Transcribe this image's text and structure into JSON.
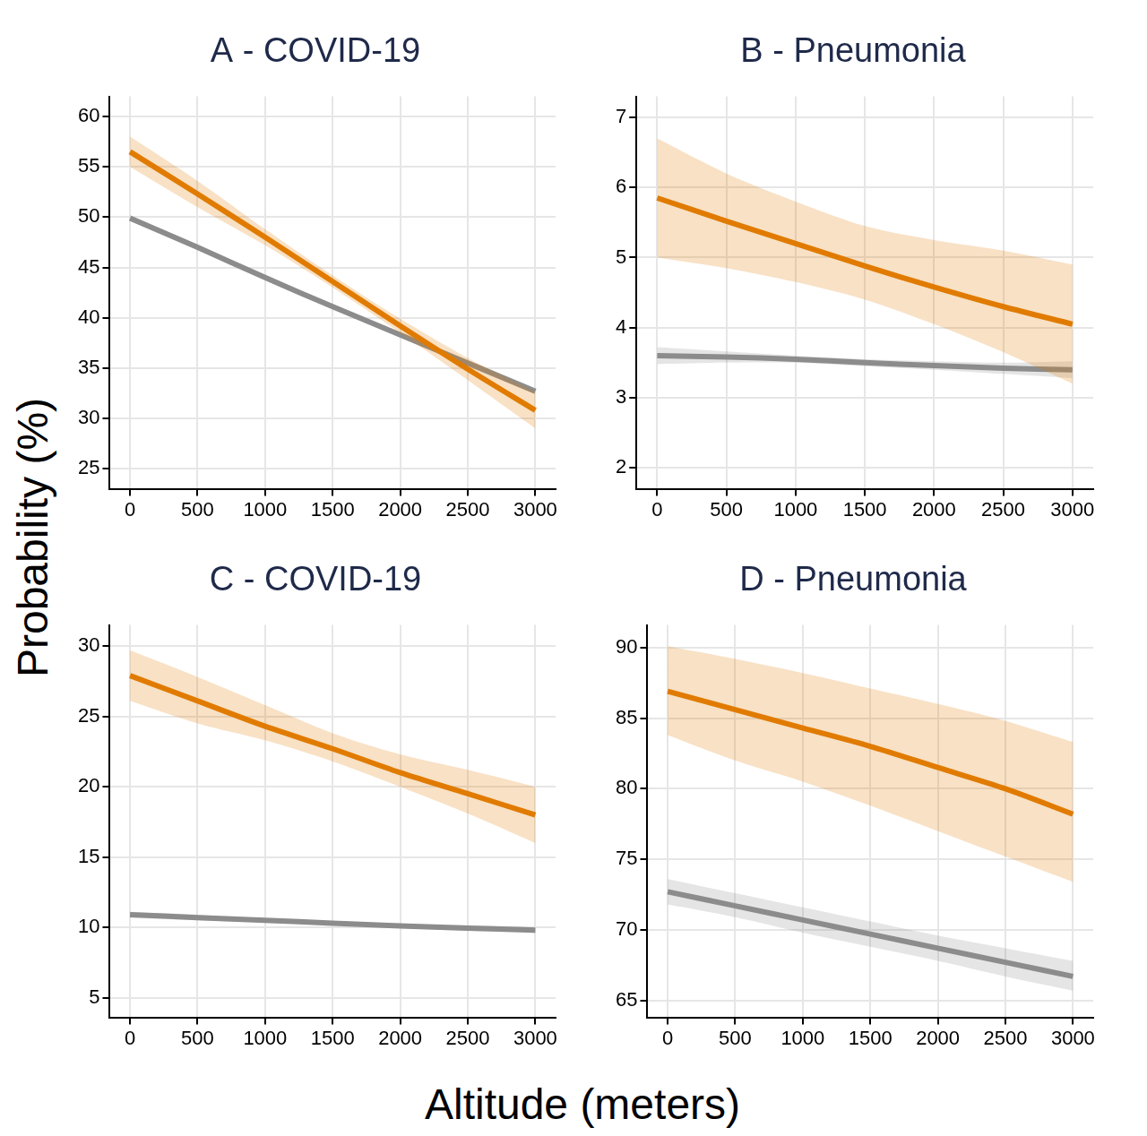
{
  "y_label": "Probability (%)",
  "x_label": "Altitude (meters)",
  "chart_data": [
    {
      "type": "line",
      "title": "A - COVID-19",
      "grid": true,
      "x": [
        0,
        500,
        1000,
        1500,
        2000,
        2500,
        3000
      ],
      "xlim": [
        -150,
        3150
      ],
      "xticks": [
        0,
        500,
        1000,
        1500,
        2000,
        2500,
        3000
      ],
      "ylim": [
        23,
        62
      ],
      "yticks": [
        25,
        30,
        35,
        40,
        45,
        50,
        55,
        60
      ],
      "series": [
        {
          "color": "#e07b00",
          "values": [
            56.5,
            52.3,
            48.0,
            43.6,
            39.2,
            34.9,
            30.8
          ],
          "lower": [
            55.0,
            51.0,
            47.2,
            43.0,
            38.5,
            33.8,
            29.0
          ],
          "upper": [
            58.0,
            53.6,
            48.8,
            44.2,
            39.9,
            36.0,
            32.6
          ]
        },
        {
          "color": "#8c8c8c",
          "values": [
            49.9,
            47.0,
            44.0,
            41.1,
            38.3,
            35.5,
            32.7
          ],
          "lower": [
            49.6,
            46.8,
            43.8,
            40.9,
            38.1,
            35.2,
            32.4
          ],
          "upper": [
            50.2,
            47.2,
            44.2,
            41.3,
            38.5,
            35.8,
            33.0
          ]
        }
      ]
    },
    {
      "type": "line",
      "title": "B - Pneumonia",
      "grid": true,
      "x": [
        0,
        500,
        1000,
        1500,
        2000,
        2500,
        3000
      ],
      "xlim": [
        -150,
        3150
      ],
      "xticks": [
        0,
        500,
        1000,
        1500,
        2000,
        2500,
        3000
      ],
      "ylim": [
        1.7,
        7.3
      ],
      "yticks": [
        2,
        3,
        4,
        5,
        6,
        7
      ],
      "series": [
        {
          "color": "#e07b00",
          "values": [
            5.85,
            5.52,
            5.2,
            4.88,
            4.58,
            4.3,
            4.05
          ],
          "lower": [
            5.0,
            4.85,
            4.65,
            4.4,
            4.05,
            3.65,
            3.2
          ],
          "upper": [
            6.7,
            6.2,
            5.8,
            5.45,
            5.25,
            5.1,
            4.9
          ]
        },
        {
          "color": "#8c8c8c",
          "values": [
            3.6,
            3.58,
            3.55,
            3.5,
            3.46,
            3.42,
            3.4
          ],
          "lower": [
            3.48,
            3.5,
            3.5,
            3.45,
            3.4,
            3.34,
            3.28
          ],
          "upper": [
            3.72,
            3.66,
            3.6,
            3.55,
            3.52,
            3.5,
            3.52
          ]
        }
      ]
    },
    {
      "type": "line",
      "title": "C - COVID-19",
      "grid": true,
      "x": [
        0,
        500,
        1000,
        1500,
        2000,
        2500,
        3000
      ],
      "xlim": [
        -150,
        3150
      ],
      "xticks": [
        0,
        500,
        1000,
        1500,
        2000,
        2500,
        3000
      ],
      "ylim": [
        3.6,
        31.5
      ],
      "yticks": [
        5,
        10,
        15,
        20,
        25,
        30
      ],
      "series": [
        {
          "color": "#e07b00",
          "values": [
            27.9,
            26.1,
            24.3,
            22.7,
            21.0,
            19.5,
            18.0
          ],
          "lower": [
            26.1,
            24.5,
            23.3,
            21.8,
            20.0,
            18.1,
            16.0
          ],
          "upper": [
            29.7,
            27.8,
            25.8,
            23.8,
            22.3,
            21.2,
            20.0
          ]
        },
        {
          "color": "#8c8c8c",
          "values": [
            10.9,
            10.7,
            10.5,
            10.3,
            10.1,
            9.95,
            9.8
          ],
          "lower": [
            10.7,
            10.5,
            10.35,
            10.15,
            9.95,
            9.75,
            9.6
          ],
          "upper": [
            11.1,
            10.9,
            10.65,
            10.45,
            10.25,
            10.15,
            10.0
          ]
        }
      ]
    },
    {
      "type": "line",
      "title": "D - Pneumonia",
      "grid": true,
      "x": [
        0,
        500,
        1000,
        1500,
        2000,
        2500,
        3000
      ],
      "xlim": [
        -150,
        3150
      ],
      "xticks": [
        0,
        500,
        1000,
        1500,
        2000,
        2500,
        3000
      ],
      "ylim": [
        63.8,
        91.6
      ],
      "yticks": [
        65,
        70,
        75,
        80,
        85,
        90
      ],
      "series": [
        {
          "color": "#e07b00",
          "values": [
            86.9,
            85.6,
            84.3,
            83.0,
            81.5,
            80.0,
            78.2
          ],
          "lower": [
            83.8,
            82.0,
            80.5,
            78.8,
            77.0,
            75.2,
            73.4
          ],
          "upper": [
            90.1,
            89.2,
            88.2,
            87.1,
            86.0,
            84.8,
            83.3
          ]
        },
        {
          "color": "#8c8c8c",
          "values": [
            72.7,
            71.7,
            70.7,
            69.7,
            68.7,
            67.7,
            66.7
          ],
          "lower": [
            71.8,
            70.9,
            69.8,
            68.8,
            67.8,
            66.7,
            65.7
          ],
          "upper": [
            73.6,
            72.6,
            71.6,
            70.6,
            69.6,
            68.7,
            67.8
          ]
        }
      ]
    }
  ]
}
